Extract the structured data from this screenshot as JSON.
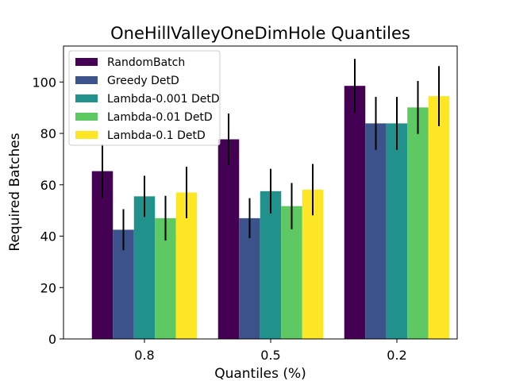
{
  "chart_data": {
    "type": "bar",
    "title": "OneHillValleyOneDimHole Quantiles",
    "xlabel": "Quantiles (%)",
    "ylabel": "Required Batches",
    "categories": [
      "0.8",
      "0.5",
      "0.2"
    ],
    "ylim": [
      0,
      114
    ],
    "yticks": [
      0,
      20,
      40,
      60,
      80,
      100
    ],
    "grid": false,
    "legend_position": "top-left",
    "series": [
      {
        "name": "RandomBatch",
        "color": "#440154",
        "values": [
          65.3,
          77.7,
          98.5
        ],
        "errors": [
          10.5,
          10.0,
          10.5
        ]
      },
      {
        "name": "Greedy DetD",
        "color": "#3b528b",
        "values": [
          42.5,
          47.0,
          83.9
        ],
        "errors": [
          8.0,
          7.8,
          10.3
        ]
      },
      {
        "name": "Lambda-0.001 DetD",
        "color": "#21918c",
        "values": [
          55.5,
          57.5,
          83.9
        ],
        "errors": [
          8.0,
          8.7,
          10.3
        ]
      },
      {
        "name": "Lambda-0.01 DetD",
        "color": "#5ec962",
        "values": [
          47.0,
          51.7,
          90.1
        ],
        "errors": [
          8.7,
          9.0,
          10.3
        ]
      },
      {
        "name": "Lambda-0.1 DetD",
        "color": "#fde725",
        "values": [
          57.0,
          58.1,
          94.5
        ],
        "errors": [
          10.0,
          10.0,
          11.7
        ]
      }
    ]
  }
}
